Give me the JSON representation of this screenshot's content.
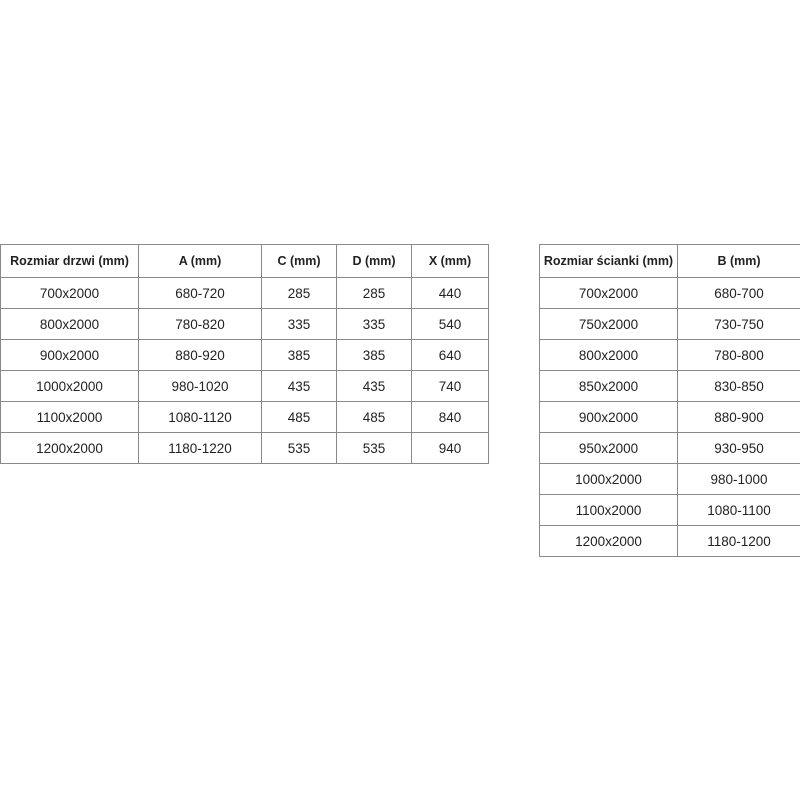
{
  "door_table": {
    "headers": [
      "Rozmiar drzwi (mm)",
      "A (mm)",
      "C (mm)",
      "D (mm)",
      "X (mm)"
    ],
    "rows": [
      [
        "700x2000",
        "680-720",
        "285",
        "285",
        "440"
      ],
      [
        "800x2000",
        "780-820",
        "335",
        "335",
        "540"
      ],
      [
        "900x2000",
        "880-920",
        "385",
        "385",
        "640"
      ],
      [
        "1000x2000",
        "980-1020",
        "435",
        "435",
        "740"
      ],
      [
        "1100x2000",
        "1080-1120",
        "485",
        "485",
        "840"
      ],
      [
        "1200x2000",
        "1180-1220",
        "535",
        "535",
        "940"
      ]
    ]
  },
  "wall_table": {
    "headers": [
      "Rozmiar ścianki (mm)",
      "B (mm)"
    ],
    "rows": [
      [
        "700x2000",
        "680-700"
      ],
      [
        "750x2000",
        "730-750"
      ],
      [
        "800x2000",
        "780-800"
      ],
      [
        "850x2000",
        "830-850"
      ],
      [
        "900x2000",
        "880-900"
      ],
      [
        "950x2000",
        "930-950"
      ],
      [
        "1000x2000",
        "980-1000"
      ],
      [
        "1100x2000",
        "1080-1100"
      ],
      [
        "1200x2000",
        "1180-1200"
      ]
    ]
  }
}
